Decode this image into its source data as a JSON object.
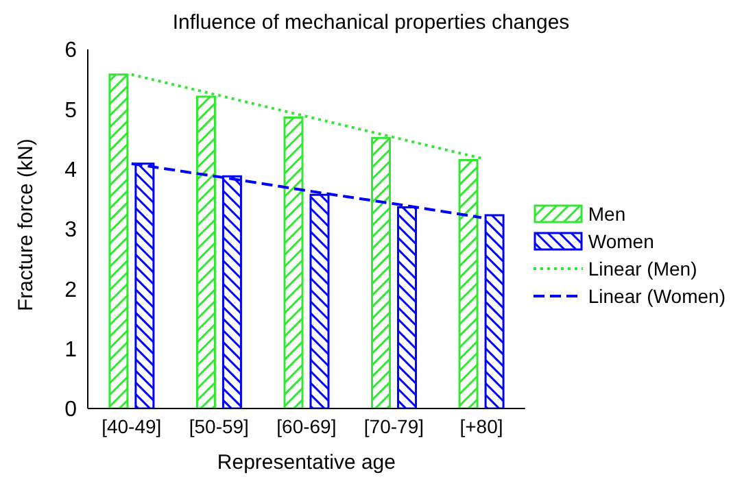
{
  "chart_data": {
    "type": "bar",
    "title": "Influence of mechanical properties changes",
    "xlabel": "Representative age",
    "ylabel": "Fracture force (kN)",
    "categories": [
      "[40-49]",
      "[50-59]",
      "[60-69]",
      "[70-79]",
      "[+80]"
    ],
    "series": [
      {
        "name": "Men",
        "color": "#33e633",
        "values": [
          5.58,
          5.21,
          4.86,
          4.52,
          4.15
        ]
      },
      {
        "name": "Women",
        "color": "#0000ff",
        "values": [
          4.09,
          3.88,
          3.57,
          3.36,
          3.23
        ]
      },
      {
        "name": "Linear (Men)",
        "type": "line",
        "line_style": "dotted",
        "color": "#33e633",
        "x": [
          "[40-49]",
          "[50-59]",
          "[60-69]",
          "[70-79]",
          "[+80]"
        ],
        "values": [
          5.58,
          5.23,
          4.88,
          4.53,
          4.18
        ]
      },
      {
        "name": "Linear (Women)",
        "type": "line",
        "line_style": "dashed",
        "color": "#0000ff",
        "x": [
          "[40-49]",
          "[50-59]",
          "[60-69]",
          "[70-79]",
          "[+80]"
        ],
        "values": [
          4.09,
          3.87,
          3.64,
          3.42,
          3.19
        ]
      }
    ],
    "ylim": [
      0,
      6
    ],
    "yticks": [
      0,
      1,
      2,
      3,
      4,
      5,
      6
    ],
    "grid": false,
    "legend": "right",
    "marker": "none"
  }
}
